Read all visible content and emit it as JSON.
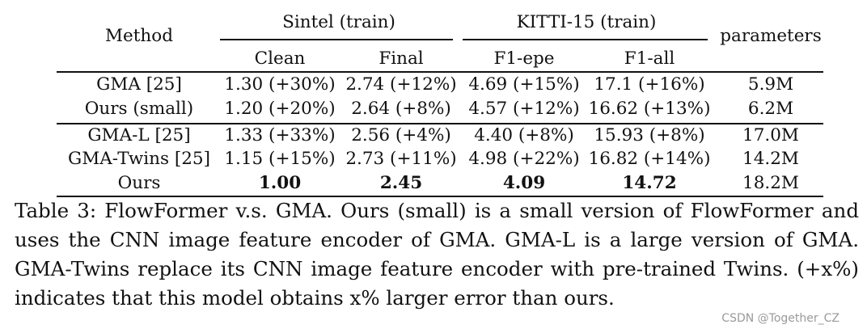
{
  "table": {
    "headers": {
      "method": "Method",
      "sintel_group": "Sintel (train)",
      "kitti_group": "KITTI-15 (train)",
      "parameters": "parameters",
      "clean": "Clean",
      "final": "Final",
      "f1_epe": "F1-epe",
      "f1_all": "F1-all"
    },
    "rows": [
      {
        "method": "GMA [25]",
        "clean": "1.30 (+30%)",
        "final": "2.74 (+12%)",
        "f1_epe": "4.69 (+15%)",
        "f1_all": "17.1 (+16%)",
        "params": "5.9M"
      },
      {
        "method": "Ours (small)",
        "clean": "1.20 (+20%)",
        "final": "2.64 (+8%)",
        "f1_epe": "4.57 (+12%)",
        "f1_all": "16.62 (+13%)",
        "params": "6.2M"
      },
      {
        "method": "GMA-L [25]",
        "clean": "1.33 (+33%)",
        "final": "2.56 (+4%)",
        "f1_epe": "4.40 (+8%)",
        "f1_all": "15.93 (+8%)",
        "params": "17.0M"
      },
      {
        "method": "GMA-Twins [25]",
        "clean": "1.15 (+15%)",
        "final": "2.73 (+11%)",
        "f1_epe": "4.98 (+22%)",
        "f1_all": "16.82 (+14%)",
        "params": "14.2M"
      },
      {
        "method": "Ours",
        "clean": "1.00",
        "final": "2.45",
        "f1_epe": "4.09",
        "f1_all": "14.72",
        "params": "18.2M"
      }
    ]
  },
  "caption": "Table 3: FlowFormer v.s. GMA. Ours (small) is a small version of FlowFormer and uses the CNN image feature encoder of GMA. GMA-L is a large version of GMA. GMA-Twins replace its CNN image feature encoder with pre-trained Twins. (+x%) indicates that this model obtains x% larger error than ours.",
  "watermark": "CSDN @Together_CZ"
}
